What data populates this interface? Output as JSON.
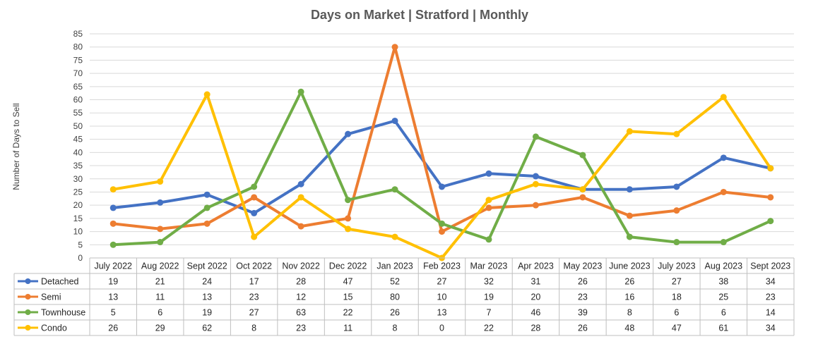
{
  "chart_data": {
    "type": "line",
    "title": "Days on Market | Stratford | Monthly",
    "xlabel": "",
    "ylabel": "Number of Days to Sell",
    "ylim": [
      0,
      85
    ],
    "yticks": [
      0,
      5,
      10,
      15,
      20,
      25,
      30,
      35,
      40,
      45,
      50,
      55,
      60,
      65,
      70,
      75,
      80,
      85
    ],
    "grid": true,
    "legend": "data-table",
    "categories": [
      "July 2022",
      "Aug 2022",
      "Sept 2022",
      "Oct 2022",
      "Nov 2022",
      "Dec 2022",
      "Jan 2023",
      "Feb 2023",
      "Mar 2023",
      "Apr 2023",
      "May 2023",
      "June 2023",
      "July 2023",
      "Aug 2023",
      "Sept 2023"
    ],
    "series": [
      {
        "name": "Detached",
        "color": "#4472c4",
        "values": [
          19,
          21,
          24,
          17,
          28,
          47,
          52,
          27,
          32,
          31,
          26,
          26,
          27,
          38,
          34
        ]
      },
      {
        "name": "Semi",
        "color": "#ed7d31",
        "values": [
          13,
          11,
          13,
          23,
          12,
          15,
          80,
          10,
          19,
          20,
          23,
          16,
          18,
          25,
          23
        ]
      },
      {
        "name": "Townhouse",
        "color": "#70ad47",
        "values": [
          5,
          6,
          19,
          27,
          63,
          22,
          26,
          13,
          7,
          46,
          39,
          8,
          6,
          6,
          14
        ]
      },
      {
        "name": "Condo",
        "color": "#ffc000",
        "values": [
          26,
          29,
          62,
          8,
          23,
          11,
          8,
          0,
          22,
          28,
          26,
          48,
          47,
          61,
          34
        ]
      }
    ]
  }
}
